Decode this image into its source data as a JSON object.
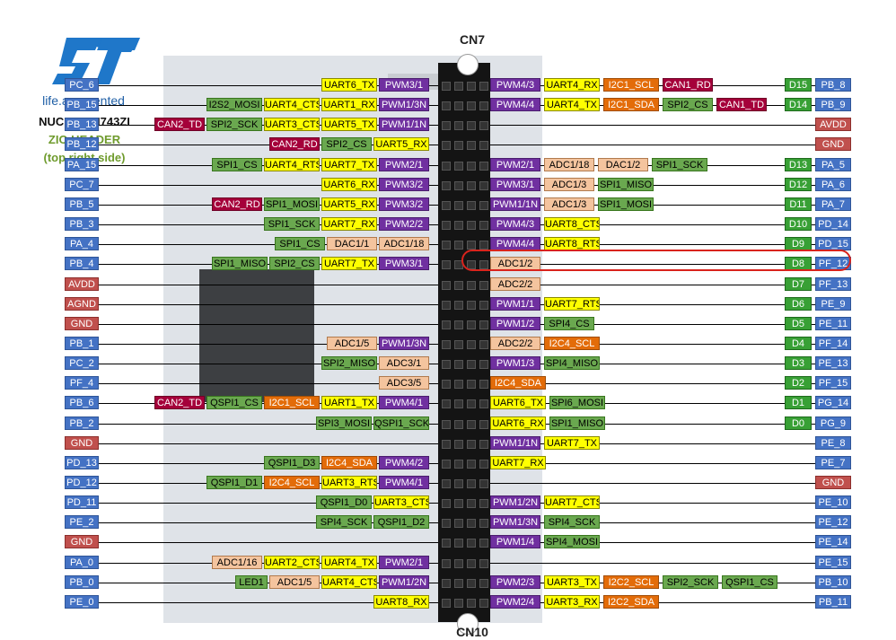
{
  "logo": {
    "tagline": "life.augmented"
  },
  "board": {
    "model": "NUCLEO-H743ZI",
    "header_line1": "ZIO HEADER",
    "header_line2": "(top right side)"
  },
  "connectors": {
    "top": "CN7",
    "bottom": "CN10"
  },
  "left_rows": [
    {
      "pin": "PC_6",
      "labels": [
        "UART6_TX",
        "PWM3/1"
      ]
    },
    {
      "pin": "PB_15",
      "labels": [
        "I2S2_MOSI",
        "UART4_CTS",
        "UART1_RX",
        "PWM1/3N"
      ]
    },
    {
      "pin": "PB_13",
      "labels": [
        "CAN2_TD",
        "SPI2_SCK",
        "UART3_CTS",
        "UART5_TX",
        "PWM1/1N"
      ]
    },
    {
      "pin": "PB_12",
      "labels": [
        "CAN2_RD",
        "SPI2_CS",
        "UART5_RX"
      ]
    },
    {
      "pin": "PA_15",
      "labels": [
        "SPI1_CS",
        "UART4_RTS",
        "UART7_TX",
        "PWM2/1"
      ]
    },
    {
      "pin": "PC_7",
      "labels": [
        "UART6_RX",
        "PWM3/2"
      ]
    },
    {
      "pin": "PB_5",
      "labels": [
        "CAN2_RD",
        "SPI1_MOSI",
        "UART5_RX",
        "PWM3/2"
      ]
    },
    {
      "pin": "PB_3",
      "labels": [
        "SPI1_SCK",
        "UART7_RX",
        "PWM2/2"
      ]
    },
    {
      "pin": "PA_4",
      "labels": [
        "SPI1_CS",
        "DAC1/1",
        "ADC1/18"
      ]
    },
    {
      "pin": "PB_4",
      "labels": [
        "SPI1_MISO",
        "SPI2_CS",
        "UART7_TX",
        "PWM3/1"
      ]
    },
    {
      "pin": "AVDD",
      "labels": []
    },
    {
      "pin": "AGND",
      "labels": []
    },
    {
      "pin": "GND",
      "labels": []
    },
    {
      "pin": "PB_1",
      "labels": [
        "ADC1/5",
        "PWM1/3N"
      ]
    },
    {
      "pin": "PC_2",
      "labels": [
        "SPI2_MISO",
        "ADC3/1"
      ]
    },
    {
      "pin": "PF_4",
      "labels": [
        "ADC3/5"
      ]
    },
    {
      "pin": "PB_6",
      "labels": [
        "CAN2_TD",
        "QSPI1_CS",
        "I2C1_SCL",
        "UART1_TX",
        "PWM4/1"
      ]
    },
    {
      "pin": "PB_2",
      "labels": [
        "SPI3_MOSI",
        "QSPI1_SCK"
      ]
    },
    {
      "pin": "GND",
      "labels": []
    },
    {
      "pin": "PD_13",
      "labels": [
        "QSPI1_D3",
        "I2C4_SDA",
        "PWM4/2"
      ]
    },
    {
      "pin": "PD_12",
      "labels": [
        "QSPI1_D1",
        "I2C4_SCL",
        "UART3_RTS",
        "PWM4/1"
      ]
    },
    {
      "pin": "PD_11",
      "labels": [
        "QSPI1_D0",
        "UART3_CTS"
      ]
    },
    {
      "pin": "PE_2",
      "labels": [
        "SPI4_SCK",
        "QSPI1_D2"
      ]
    },
    {
      "pin": "GND",
      "labels": []
    },
    {
      "pin": "PA_0",
      "labels": [
        "ADC1/16",
        "UART2_CTS",
        "UART4_TX",
        "PWM2/1"
      ]
    },
    {
      "pin": "PB_0",
      "labels": [
        "LED1",
        "ADC1/5",
        "UART4_CTS",
        "PWM1/2N"
      ]
    },
    {
      "pin": "PE_0",
      "labels": [
        "UART8_RX"
      ]
    }
  ],
  "right_rows": [
    {
      "pin": "PB_8",
      "dpin": "D15",
      "labels": [
        "PWM4/3",
        "UART4_RX",
        "I2C1_SCL",
        "CAN1_RD"
      ]
    },
    {
      "pin": "PB_9",
      "dpin": "D14",
      "labels": [
        "PWM4/4",
        "UART4_TX",
        "I2C1_SDA",
        "SPI2_CS",
        "CAN1_TD"
      ]
    },
    {
      "pin": "AVDD",
      "dpin": "",
      "labels": []
    },
    {
      "pin": "GND",
      "dpin": "",
      "labels": []
    },
    {
      "pin": "PA_5",
      "dpin": "D13",
      "labels": [
        "PWM2/1",
        "ADC1/18",
        "DAC1/2",
        "SPI1_SCK"
      ]
    },
    {
      "pin": "PA_6",
      "dpin": "D12",
      "labels": [
        "PWM3/1",
        "ADC1/3",
        "SPI1_MISO"
      ]
    },
    {
      "pin": "PA_7",
      "dpin": "D11",
      "labels": [
        "PWM1/1N",
        "ADC1/3",
        "SPI1_MOSI"
      ]
    },
    {
      "pin": "PD_14",
      "dpin": "D10",
      "labels": [
        "PWM4/3",
        "UART8_CTS"
      ]
    },
    {
      "pin": "PD_15",
      "dpin": "D9",
      "labels": [
        "PWM4/4",
        "UART8_RTS"
      ]
    },
    {
      "pin": "PF_12",
      "dpin": "D8",
      "labels": [
        "ADC1/2"
      ]
    },
    {
      "pin": "PF_13",
      "dpin": "D7",
      "labels": [
        "ADC2/2"
      ]
    },
    {
      "pin": "PE_9",
      "dpin": "D6",
      "labels": [
        "PWM1/1",
        "UART7_RTS"
      ]
    },
    {
      "pin": "PE_11",
      "dpin": "D5",
      "labels": [
        "PWM1/2",
        "SPI4_CS"
      ]
    },
    {
      "pin": "PF_14",
      "dpin": "D4",
      "labels": [
        "ADC2/2",
        "I2C4_SCL"
      ]
    },
    {
      "pin": "PE_13",
      "dpin": "D3",
      "labels": [
        "PWM1/3",
        "SPI4_MISO"
      ]
    },
    {
      "pin": "PF_15",
      "dpin": "D2",
      "labels": [
        "I2C4_SDA"
      ]
    },
    {
      "pin": "PG_14",
      "dpin": "D1",
      "labels": [
        "UART6_TX",
        "SPI6_MOSI"
      ]
    },
    {
      "pin": "PG_9",
      "dpin": "D0",
      "labels": [
        "UART6_RX",
        "SPI1_MISO"
      ]
    },
    {
      "pin": "PE_8",
      "dpin": "",
      "labels": [
        "PWM1/1N",
        "UART7_TX"
      ]
    },
    {
      "pin": "PE_7",
      "dpin": "",
      "labels": [
        "UART7_RX"
      ]
    },
    {
      "pin": "GND",
      "dpin": "",
      "labels": []
    },
    {
      "pin": "PE_10",
      "dpin": "",
      "labels": [
        "PWM1/2N",
        "UART7_CTS"
      ]
    },
    {
      "pin": "PE_12",
      "dpin": "",
      "labels": [
        "PWM1/3N",
        "SPI4_SCK"
      ]
    },
    {
      "pin": "PE_14",
      "dpin": "",
      "labels": [
        "PWM1/4",
        "SPI4_MOSI"
      ]
    },
    {
      "pin": "PE_15",
      "dpin": "",
      "labels": []
    },
    {
      "pin": "PB_10",
      "dpin": "",
      "labels": [
        "PWM2/3",
        "UART3_TX",
        "I2C2_SCL",
        "SPI2_SCK",
        "QSPI1_CS"
      ]
    },
    {
      "pin": "PB_11",
      "dpin": "",
      "labels": [
        "PWM2/4",
        "UART3_RX",
        "I2C2_SDA"
      ]
    }
  ],
  "colors": {
    "pin": "#4472c4",
    "power": "#c0504d",
    "uart": "#ffff00",
    "pwm": "#7030a0",
    "adc": "#f4c49e",
    "i2c": "#e36c09",
    "can": "#a5003a",
    "spi": "#6aa84f",
    "digital": "#38a035",
    "highlight": "#d9231c"
  }
}
